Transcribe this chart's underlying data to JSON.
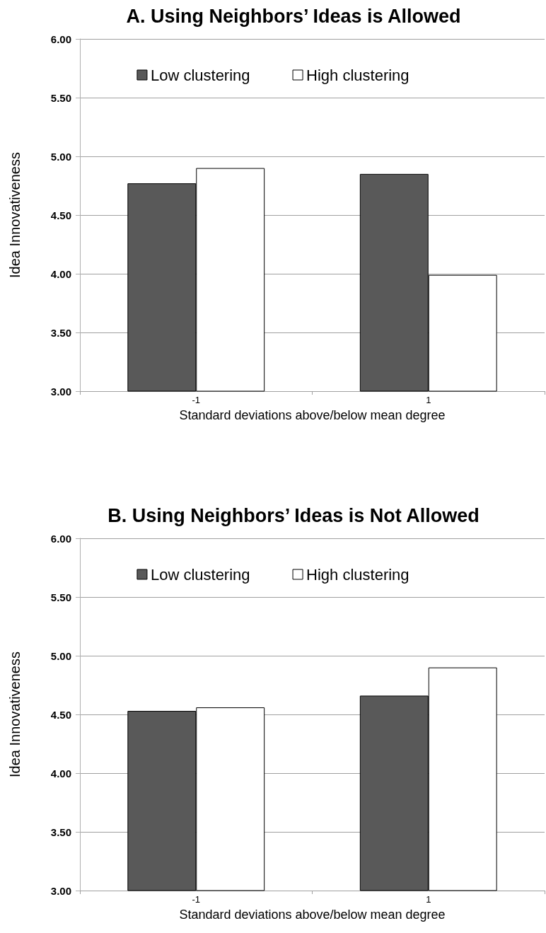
{
  "chart_data": [
    {
      "type": "bar",
      "title": "A. Using Neighbors’ Ideas is Allowed",
      "xlabel": "Standard deviations above/below mean degree",
      "ylabel": "Idea Innovativeness",
      "categories": [
        "-1",
        "1"
      ],
      "series": [
        {
          "name": "Low clustering",
          "color": "#595959",
          "values": [
            4.77,
            4.85
          ]
        },
        {
          "name": "High clustering",
          "color": "#ffffff",
          "values": [
            4.9,
            3.99
          ]
        }
      ],
      "ylim": [
        3,
        6
      ],
      "yticks": [
        {
          "value": 3,
          "label": "3.00"
        },
        {
          "value": 3.5,
          "label": "3.50"
        },
        {
          "value": 4,
          "label": "4.00"
        },
        {
          "value": 4.5,
          "label": "4.50"
        },
        {
          "value": 5,
          "label": "5.00"
        },
        {
          "value": 5.5,
          "label": "5.50"
        },
        {
          "value": 6,
          "label": "6.00"
        }
      ],
      "grid": "y",
      "legend": "top"
    },
    {
      "type": "bar",
      "title": "B. Using Neighbors’ Ideas is Not Allowed",
      "xlabel": "Standard deviations above/below mean degree",
      "ylabel": "Idea Innovativeness",
      "categories": [
        "-1",
        "1"
      ],
      "series": [
        {
          "name": "Low clustering",
          "color": "#595959",
          "values": [
            4.53,
            4.66
          ]
        },
        {
          "name": "High clustering",
          "color": "#ffffff",
          "values": [
            4.56,
            4.9
          ]
        }
      ],
      "ylim": [
        3,
        6
      ],
      "yticks": [
        {
          "value": 3,
          "label": "3.00"
        },
        {
          "value": 3.5,
          "label": "3.50"
        },
        {
          "value": 4,
          "label": "4.00"
        },
        {
          "value": 4.5,
          "label": "4.50"
        },
        {
          "value": 5,
          "label": "5.00"
        },
        {
          "value": 5.5,
          "label": "5.50"
        },
        {
          "value": 6,
          "label": "6.00"
        }
      ],
      "grid": "y",
      "legend": "top"
    }
  ]
}
